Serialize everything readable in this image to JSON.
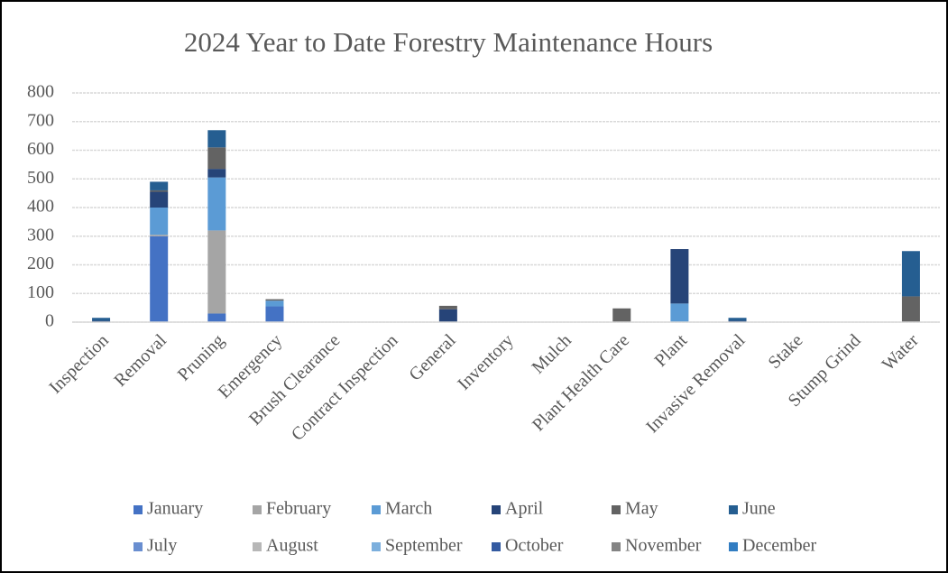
{
  "chart_data": {
    "type": "stacked_bar",
    "title": "2024 Year to Date Forestry Maintenance Hours",
    "categories": [
      "Inspection",
      "Removal",
      "Pruning",
      "Emergency",
      "Brush Clearance",
      "Contract Inspection",
      "General",
      "Inventory",
      "Mulch",
      "Plant Health Care",
      "Plant",
      "Invasive Removal",
      "Stake",
      "Stump Grind",
      "Water"
    ],
    "series": [
      {
        "name": "January",
        "color": "#4472c4",
        "values": [
          0,
          300,
          30,
          55,
          0,
          0,
          0,
          0,
          0,
          0,
          0,
          0,
          0,
          0,
          0
        ]
      },
      {
        "name": "February",
        "color": "#a5a5a5",
        "values": [
          0,
          5,
          290,
          0,
          0,
          0,
          0,
          0,
          0,
          0,
          0,
          0,
          0,
          0,
          0
        ]
      },
      {
        "name": "March",
        "color": "#5b9bd5",
        "values": [
          0,
          95,
          185,
          20,
          0,
          0,
          0,
          0,
          0,
          0,
          65,
          0,
          0,
          0,
          0
        ]
      },
      {
        "name": "April",
        "color": "#264478",
        "values": [
          5,
          55,
          30,
          0,
          0,
          0,
          45,
          0,
          0,
          0,
          190,
          5,
          0,
          0,
          0
        ]
      },
      {
        "name": "May",
        "color": "#636363",
        "values": [
          0,
          5,
          75,
          5,
          0,
          0,
          12,
          0,
          0,
          48,
          0,
          0,
          0,
          0,
          90
        ]
      },
      {
        "name": "June",
        "color": "#255e91",
        "values": [
          10,
          30,
          60,
          0,
          0,
          0,
          0,
          0,
          0,
          0,
          0,
          10,
          0,
          0,
          158
        ]
      },
      {
        "name": "July",
        "color": "#698ed0",
        "values": [
          0,
          0,
          0,
          0,
          0,
          0,
          0,
          0,
          0,
          0,
          0,
          0,
          0,
          0,
          0
        ]
      },
      {
        "name": "August",
        "color": "#b7b7b7",
        "values": [
          0,
          0,
          0,
          0,
          0,
          0,
          0,
          0,
          0,
          0,
          0,
          0,
          0,
          0,
          0
        ]
      },
      {
        "name": "September",
        "color": "#7cafdd",
        "values": [
          0,
          0,
          0,
          0,
          0,
          0,
          0,
          0,
          0,
          0,
          0,
          0,
          0,
          0,
          0
        ]
      },
      {
        "name": "October",
        "color": "#335aa1",
        "values": [
          0,
          0,
          0,
          0,
          0,
          0,
          0,
          0,
          0,
          0,
          0,
          0,
          0,
          0,
          0
        ]
      },
      {
        "name": "November",
        "color": "#848484",
        "values": [
          0,
          0,
          0,
          0,
          0,
          0,
          0,
          0,
          0,
          0,
          0,
          0,
          0,
          0,
          0
        ]
      },
      {
        "name": "December",
        "color": "#327dc2",
        "values": [
          0,
          0,
          0,
          0,
          0,
          0,
          0,
          0,
          0,
          0,
          0,
          0,
          0,
          0,
          0
        ]
      }
    ],
    "ylim": [
      0,
      800
    ],
    "yticks": [
      0,
      100,
      200,
      300,
      400,
      500,
      600,
      700,
      800
    ],
    "grid": true,
    "legend": "bottom"
  }
}
